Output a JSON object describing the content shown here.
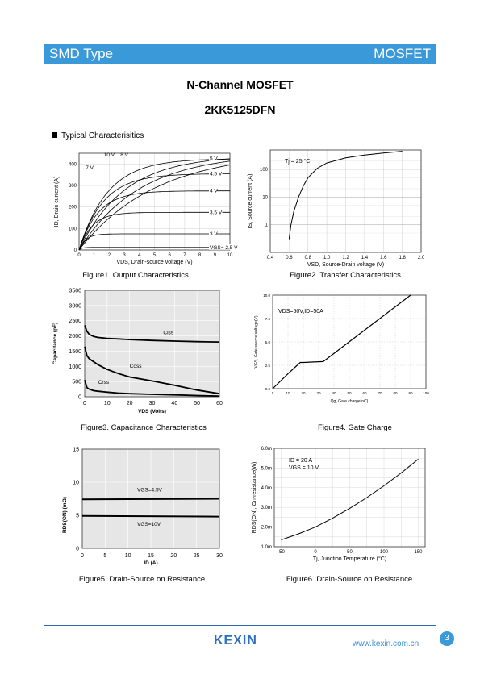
{
  "header": {
    "left": "SMD Type",
    "right": "MOSFET"
  },
  "title": "N-Channel MOSFET",
  "part_number": "2KK5125DFN",
  "section": "Typical  Characterisitics",
  "captions": {
    "fig1": "Figure1.  Output Characteristics",
    "fig2": "Figure2.  Transfer Characteristics",
    "fig3": "Figure3.  Capacitance Characteristics",
    "fig4": "Figure4. Gate Charge",
    "fig5": "Figure5. Drain-Source on Resistance",
    "fig6": "Figure6. Drain-Source on Resistance"
  },
  "footer": {
    "logo": "KEXIN",
    "url": "www.kexin.com.cn",
    "page": "3"
  },
  "colors": {
    "accent": "#3a9ad9",
    "logo": "#2d6fbf"
  },
  "chart_data": [
    {
      "type": "line",
      "xlabel": "VDS, Drain-source voltage (V)",
      "ylabel": "ID, Drain current (A)",
      "xlim": [
        0,
        10
      ],
      "ylim": [
        0,
        450
      ],
      "xticks": [
        "0",
        "1",
        "2",
        "3",
        "4",
        "5",
        "6",
        "7",
        "8",
        "9",
        "10"
      ],
      "yticks": [
        "0",
        "100",
        "200",
        "300",
        "400"
      ],
      "grid": true,
      "series": [
        {
          "name": "10 V",
          "sat": 460,
          "k": 0.4
        },
        {
          "name": "8 V",
          "sat": 450,
          "k": 0.5
        },
        {
          "name": "7 V",
          "sat": 440,
          "k": 0.65
        },
        {
          "name": "5 V",
          "sat": 425,
          "k": 1.0
        },
        {
          "name": "4.5 V",
          "sat": 355,
          "k": 1.0
        },
        {
          "name": "4 V",
          "sat": 275,
          "k": 1.0
        },
        {
          "name": "3.5 V",
          "sat": 175,
          "k": 1.0
        },
        {
          "name": "3 V",
          "sat": 75,
          "k": 1.0
        },
        {
          "name": "VGS= 2.5 V",
          "sat": 12,
          "k": 1.0
        }
      ]
    },
    {
      "type": "line",
      "xlabel": "VSD, Source-Drain voltage (V)",
      "ylabel": "IS, Source current (A)",
      "xlim": [
        0.4,
        2.0
      ],
      "ylim": [
        0.1,
        500
      ],
      "yscale": "log",
      "xticks": [
        "0.4",
        "0.6",
        "0.8",
        "1.0",
        "1.2",
        "1.4",
        "1.6",
        "1.8",
        "2.0"
      ],
      "yticks": [
        "1",
        "10",
        "100"
      ],
      "annotation": "Tj = 25 °C",
      "grid": true,
      "x": [
        0.6,
        0.62,
        0.65,
        0.7,
        0.75,
        0.8,
        0.9,
        1.0,
        1.2,
        1.4,
        1.6,
        1.8
      ],
      "y": [
        0.3,
        1,
        3,
        10,
        25,
        50,
        110,
        170,
        260,
        330,
        390,
        450
      ]
    },
    {
      "type": "line",
      "xlabel": "VDS (Volts)",
      "ylabel": "Capacitance (pF)",
      "xlim": [
        0,
        60
      ],
      "ylim": [
        0,
        3500
      ],
      "xticks": [
        "0",
        "10",
        "20",
        "30",
        "40",
        "50",
        "60"
      ],
      "yticks": [
        "0",
        "500",
        "1000",
        "1500",
        "2000",
        "2500",
        "3000",
        "3500"
      ],
      "grid": true,
      "series": [
        {
          "name": "Ciss",
          "x": [
            0,
            1,
            2,
            4,
            6,
            10,
            15,
            20,
            30,
            40,
            50,
            60
          ],
          "values": [
            2350,
            2150,
            2050,
            1980,
            1950,
            1920,
            1900,
            1880,
            1850,
            1830,
            1810,
            1800
          ]
        },
        {
          "name": "Coss",
          "x": [
            0,
            1,
            2,
            4,
            6,
            10,
            15,
            20,
            30,
            40,
            50,
            60
          ],
          "values": [
            1650,
            1350,
            1250,
            1150,
            1050,
            900,
            760,
            650,
            520,
            380,
            220,
            100
          ]
        },
        {
          "name": "Crss",
          "x": [
            0,
            1,
            2,
            4,
            6,
            10,
            15,
            20,
            30,
            40,
            50,
            60
          ],
          "values": [
            550,
            300,
            250,
            200,
            180,
            150,
            120,
            100,
            80,
            60,
            40,
            20
          ]
        }
      ]
    },
    {
      "type": "line",
      "xlabel": "Qg, Gate charge(nC)",
      "ylabel": "VGS, Gate-source voltage(V)",
      "xlim": [
        0,
        100
      ],
      "ylim": [
        0,
        10
      ],
      "xticks": [
        "0",
        "10",
        "20",
        "30",
        "40",
        "50",
        "60",
        "70",
        "80",
        "90",
        "100"
      ],
      "yticks": [
        "0.0",
        "2.5",
        "5.0",
        "7.5",
        "10.0"
      ],
      "annotation": "VDS=50V,ID=50A",
      "grid": true,
      "x": [
        0,
        10,
        18,
        20,
        33,
        90
      ],
      "y": [
        0,
        1.6,
        2.8,
        2.8,
        2.9,
        10
      ]
    },
    {
      "type": "line",
      "xlabel": "ID (A)",
      "ylabel": "RDS(ON) (mΩ)",
      "xlim": [
        0,
        30
      ],
      "ylim": [
        0,
        15
      ],
      "xticks": [
        "0",
        "5",
        "10",
        "15",
        "20",
        "25",
        "30"
      ],
      "yticks": [
        "0",
        "5",
        "10",
        "15"
      ],
      "grid": true,
      "series": [
        {
          "name": "VGS=4.5V",
          "x": [
            0,
            30
          ],
          "values": [
            7.4,
            7.5
          ]
        },
        {
          "name": "VGS=10V",
          "x": [
            0,
            30
          ],
          "values": [
            4.9,
            4.8
          ]
        }
      ]
    },
    {
      "type": "line",
      "xlabel": "Tj, Junction Temperature (°C)",
      "ylabel": "RDS(ON), On-resistance(W)",
      "xlim": [
        -60,
        160
      ],
      "ylim": [
        1.0,
        6.0
      ],
      "xticks": [
        "-50",
        "0",
        "50",
        "100",
        "150"
      ],
      "yticks": [
        "1.0m",
        "2.0m",
        "3.0m",
        "4.0m",
        "5.0m",
        "6.0m"
      ],
      "annotation": [
        "ID = 20 A",
        "VGS = 10 V"
      ],
      "grid": true,
      "x": [
        -50,
        -25,
        0,
        25,
        50,
        75,
        100,
        125,
        150
      ],
      "y": [
        1.35,
        1.65,
        2.0,
        2.45,
        2.95,
        3.5,
        4.1,
        4.75,
        5.45
      ]
    }
  ]
}
